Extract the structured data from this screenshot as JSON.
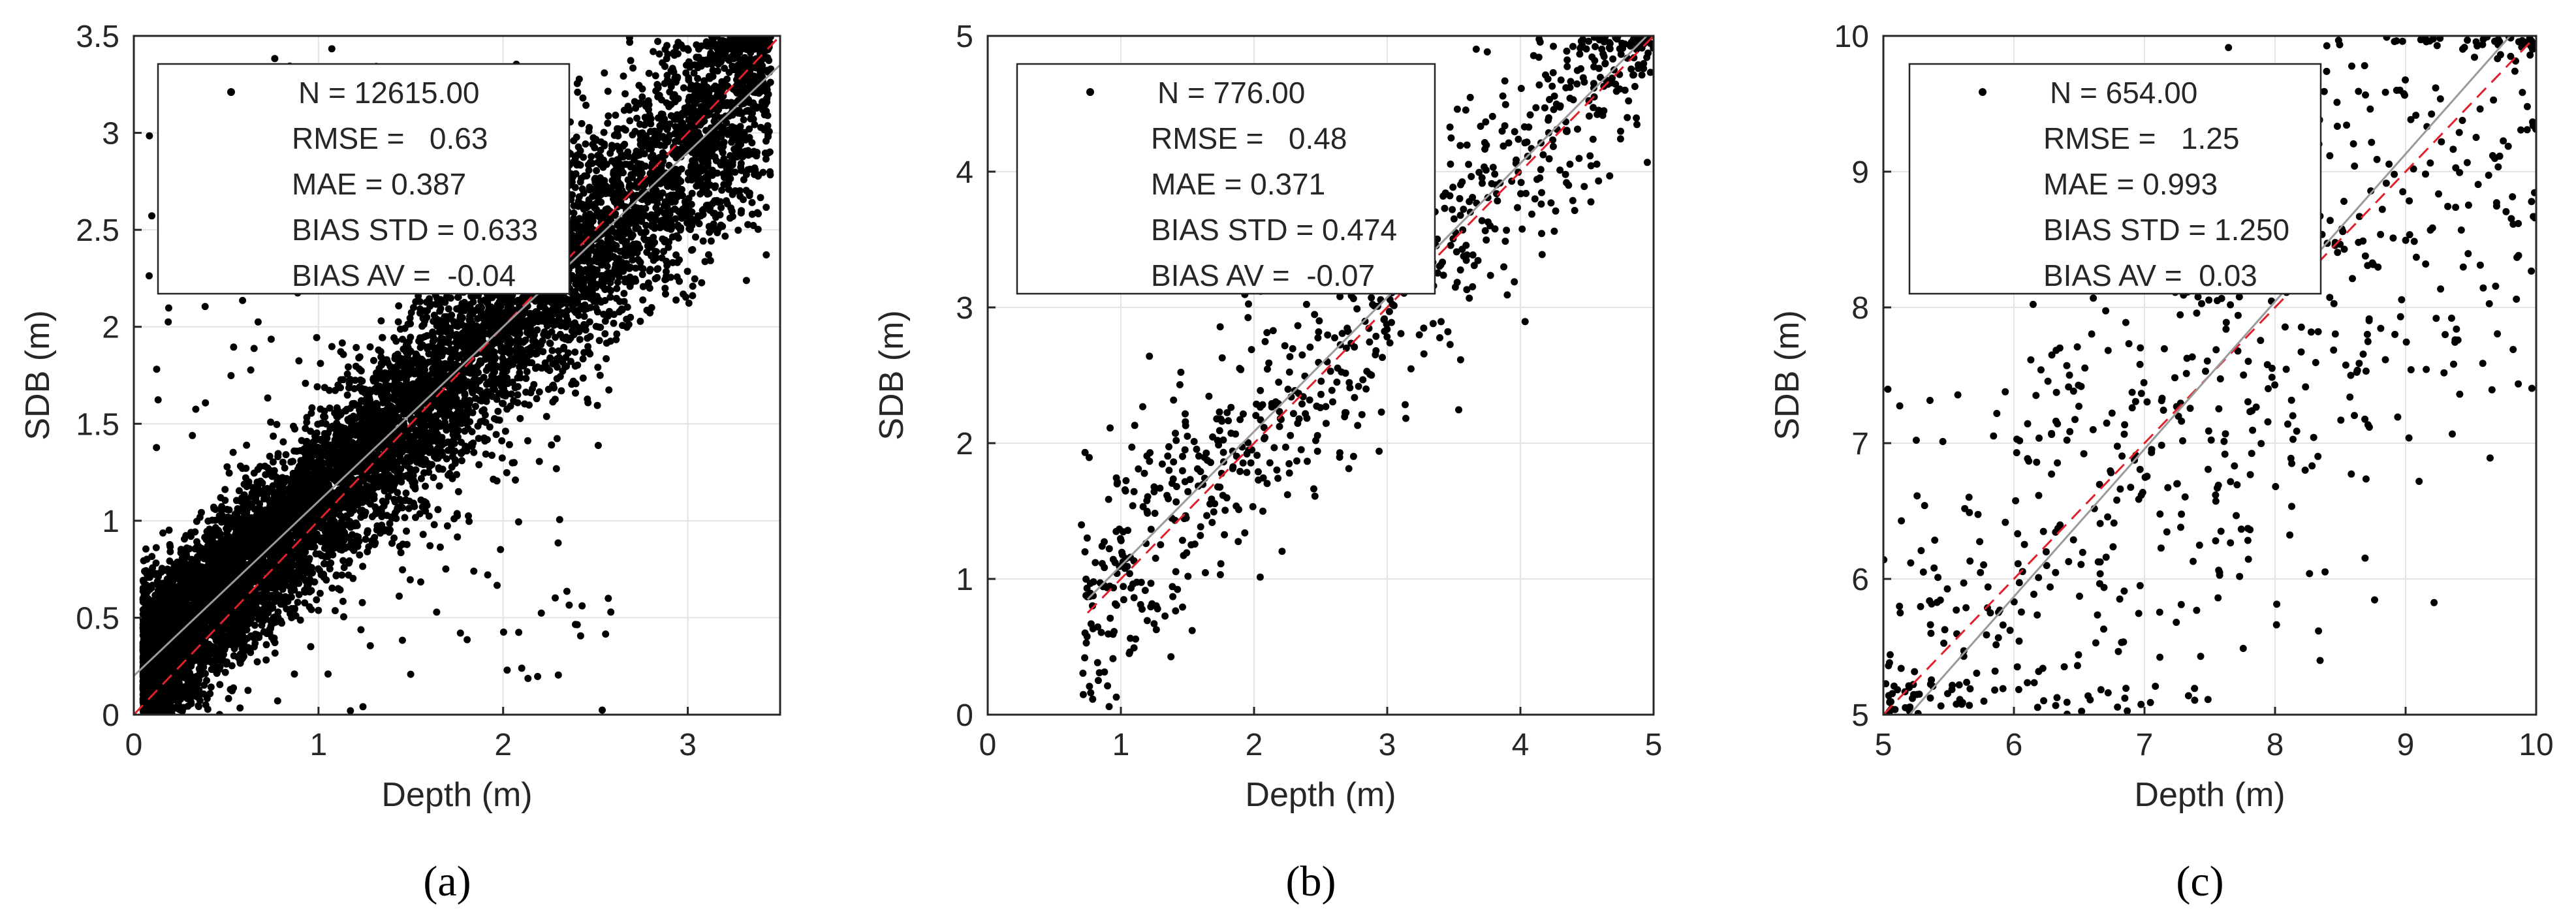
{
  "chart_data": [
    {
      "type": "scatter",
      "panel_label": "(a)",
      "xlabel": "Depth (m)",
      "ylabel": "SDB (m)",
      "xlim": [
        0,
        3.5
      ],
      "ylim": [
        0,
        3.5
      ],
      "xticks": [
        0,
        1,
        2,
        3
      ],
      "yticks": [
        0,
        0.5,
        1,
        1.5,
        2,
        2.5,
        3,
        3.5
      ],
      "xtick_labels": [
        "0",
        "1",
        "2",
        "3"
      ],
      "ytick_labels": [
        "0",
        "0.5",
        "1",
        "1.5",
        "2",
        "2.5",
        "3",
        "3.5"
      ],
      "grid": true,
      "stats": [
        "N = 12615.00",
        "RMSE =   0.63",
        "MAE = 0.387",
        "BIAS STD = 0.633",
        "BIAS AV =  -0.04"
      ],
      "lines": [
        {
          "name": "1:1 line",
          "style": "dashed",
          "color": "#e0202a",
          "x": [
            0,
            3.5
          ],
          "y": [
            0,
            3.5
          ]
        },
        {
          "name": "fit line",
          "style": "solid",
          "color": "#9a9a9a",
          "x": [
            0,
            3.5
          ],
          "y": [
            0.2,
            3.35
          ]
        }
      ],
      "scatter": {
        "n_points": 9000,
        "x_range": [
          0.05,
          3.45
        ],
        "slope": 0.9,
        "intercept": 0.2,
        "noise": 0.42,
        "outliers": 220,
        "seed": 11,
        "dot_r": 5.5
      }
    },
    {
      "type": "scatter",
      "panel_label": "(b)",
      "xlabel": "Depth (m)",
      "ylabel": "SDB (m)",
      "xlim": [
        0,
        5
      ],
      "ylim": [
        0,
        5
      ],
      "xticks": [
        0,
        1,
        2,
        3,
        4,
        5
      ],
      "yticks": [
        0,
        1,
        2,
        3,
        4,
        5
      ],
      "xtick_labels": [
        "0",
        "1",
        "2",
        "3",
        "4",
        "5"
      ],
      "ytick_labels": [
        "0",
        "1",
        "2",
        "3",
        "4",
        "5"
      ],
      "grid": true,
      "stats": [
        "N = 776.00",
        "RMSE =   0.48",
        "MAE = 0.371",
        "BIAS STD = 0.474",
        "BIAS AV =  -0.07"
      ],
      "lines": [
        {
          "name": "1:1 line",
          "style": "dashed",
          "color": "#e0202a",
          "x": [
            0.75,
            5
          ],
          "y": [
            0.75,
            5
          ]
        },
        {
          "name": "fit line",
          "style": "solid",
          "color": "#9a9a9a",
          "x": [
            0.75,
            5
          ],
          "y": [
            0.85,
            5.05
          ]
        }
      ],
      "scatter": {
        "n_points": 776,
        "x_range": [
          0.7,
          5.0
        ],
        "slope": 1.0,
        "intercept": 0.05,
        "noise": 0.42,
        "outliers": 0,
        "seed": 23,
        "dot_r": 5.5
      }
    },
    {
      "type": "scatter",
      "panel_label": "(c)",
      "xlabel": "Depth (m)",
      "ylabel": "SDB (m)",
      "xlim": [
        5,
        10
      ],
      "ylim": [
        5,
        10
      ],
      "xticks": [
        5,
        6,
        7,
        8,
        9,
        10
      ],
      "yticks": [
        5,
        6,
        7,
        8,
        9,
        10
      ],
      "xtick_labels": [
        "5",
        "6",
        "7",
        "8",
        "9",
        "10"
      ],
      "ytick_labels": [
        "5",
        "6",
        "7",
        "8",
        "9",
        "10"
      ],
      "grid": true,
      "stats": [
        "N = 654.00",
        "RMSE =   1.25",
        "MAE = 0.993",
        "BIAS STD = 1.250",
        "BIAS AV =  0.03"
      ],
      "lines": [
        {
          "name": "1:1 line",
          "style": "dashed",
          "color": "#e0202a",
          "x": [
            5,
            10
          ],
          "y": [
            5,
            10
          ]
        },
        {
          "name": "fit line",
          "style": "solid",
          "color": "#9a9a9a",
          "x": [
            5.2,
            9.8
          ],
          "y": [
            5,
            10
          ]
        }
      ],
      "scatter": {
        "n_points": 654,
        "x_range": [
          5.0,
          10.0
        ],
        "slope": 0.85,
        "intercept": 0.95,
        "noise": 1.05,
        "outliers": 0,
        "seed": 37,
        "dot_r": 5.5
      }
    }
  ]
}
